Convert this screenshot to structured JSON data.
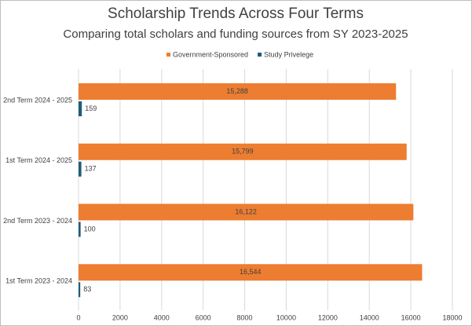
{
  "chart_data": {
    "type": "bar",
    "orientation": "horizontal",
    "title": "Scholarship Trends Across Four Terms",
    "subtitle": "Comparing total scholars and funding sources from SY 2023-2025",
    "categories": [
      "2nd Term 2024 - 2025",
      "1st Term 2024 - 2025",
      "2nd Term 2023 - 2024",
      "1st Term 2023 - 2024"
    ],
    "series": [
      {
        "name": "Government-Sponsored",
        "color": "#ed7d31",
        "values": [
          15288,
          15799,
          16122,
          16544
        ],
        "value_labels": [
          "15,288",
          "15,799",
          "16,122",
          "16,544"
        ]
      },
      {
        "name": "Study Privelege",
        "color": "#1f5c7a",
        "values": [
          159,
          137,
          100,
          83
        ]
      }
    ],
    "xlim": [
      0,
      18000
    ],
    "xticks": [
      0,
      2000,
      4000,
      6000,
      8000,
      10000,
      12000,
      14000,
      16000,
      18000
    ],
    "grid": true,
    "legend": "top"
  }
}
